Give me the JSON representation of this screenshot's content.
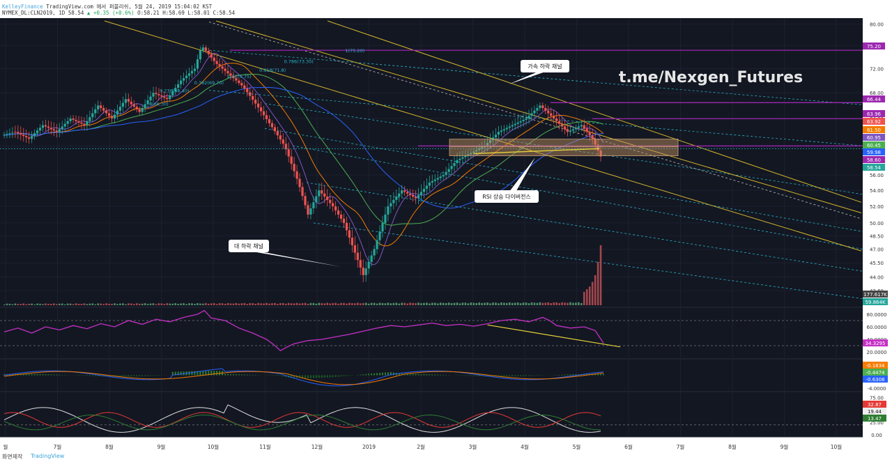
{
  "header": {
    "brand": "KelleyFinance",
    "published": "TradingView.com 에서 퍼블리쉬, 5월 24, 2019 15:04:02 KST",
    "symbol_line_prefix": "NYMEX_DL:CLN2019, 1D 58.54 ",
    "change": "▲ +0.35 (+0.6%)",
    "ohlc": "O:58.21 H:58.69 L:58.01 C:58.54"
  },
  "footer": {
    "made_with": "화면제작",
    "logo_text": "TradingView"
  },
  "watermark": "t.me/Nexgen_Futures",
  "colors": {
    "background": "#131722",
    "up": "#26a69a",
    "down": "#ef5350",
    "channel": "#d4b62c",
    "fib": "#28b5c9",
    "level": "#9c27b0",
    "rsi": "#c530c5"
  },
  "chart_data": [
    {
      "type": "candlestick",
      "panel": "price",
      "x_tick_labels": [
        "월",
        "7월",
        "8월",
        "9월",
        "10월",
        "11월",
        "12월",
        "2019",
        "2월",
        "3월",
        "4월",
        "5월",
        "6월",
        "7월",
        "8월",
        "9월",
        "10월"
      ],
      "y_tick_labels": [
        "80.00",
        "76.00",
        "72.00",
        "68.00",
        "64.00",
        "60.00",
        "56.00",
        "54.00",
        "52.00",
        "50.00",
        "48.50",
        "47.00",
        "45.50",
        "44.00",
        "42.60"
      ],
      "ylim": [
        41.3,
        80.6
      ],
      "scale": "log",
      "close_path": [
        [
          0,
          61.5
        ],
        [
          10,
          62
        ],
        [
          20,
          61
        ],
        [
          30,
          63
        ],
        [
          40,
          62
        ],
        [
          50,
          64
        ],
        [
          60,
          63
        ],
        [
          70,
          66
        ],
        [
          80,
          64
        ],
        [
          90,
          67
        ],
        [
          100,
          65
        ],
        [
          110,
          68
        ],
        [
          120,
          67
        ],
        [
          130,
          70
        ],
        [
          140,
          72
        ],
        [
          145,
          76
        ],
        [
          155,
          73
        ],
        [
          165,
          71
        ],
        [
          175,
          69
        ],
        [
          185,
          66
        ],
        [
          195,
          63
        ],
        [
          205,
          60
        ],
        [
          215,
          55
        ],
        [
          222,
          51
        ],
        [
          230,
          54
        ],
        [
          240,
          52
        ],
        [
          248,
          50
        ],
        [
          255,
          47
        ],
        [
          262,
          44.2
        ],
        [
          270,
          47
        ],
        [
          280,
          52
        ],
        [
          290,
          54
        ],
        [
          300,
          53
        ],
        [
          310,
          55
        ],
        [
          320,
          56
        ],
        [
          330,
          58
        ],
        [
          340,
          59
        ],
        [
          350,
          60
        ],
        [
          360,
          62
        ],
        [
          370,
          63
        ],
        [
          380,
          64
        ],
        [
          390,
          66
        ],
        [
          400,
          64
        ],
        [
          410,
          62
        ],
        [
          420,
          63
        ],
        [
          428,
          61
        ],
        [
          434,
          58.5
        ]
      ],
      "volume_indices": [
        [
          420,
          4
        ],
        [
          425,
          6
        ],
        [
          428,
          9
        ],
        [
          430,
          13
        ],
        [
          432,
          18
        ],
        [
          434,
          23
        ]
      ],
      "fib_labels": [
        "0(66.30)",
        "0.236(68.40)",
        "0.382(69.70)",
        "0.5(70.75)",
        "0.618(71.8)",
        "0.786(73.30)",
        "1(75.20)"
      ],
      "level_tags": [
        "75.20",
        "66.44",
        "63.96",
        "63.92",
        "61.50",
        "60.95",
        "60.45",
        "59.98",
        "58.60",
        "58.54"
      ],
      "volume_tags": [
        "177.617K",
        "59.864K"
      ],
      "annotations": [
        "가속 하락 채널",
        "RSI 상승 다이버전스",
        "대 하락 채널"
      ]
    },
    {
      "type": "line",
      "panel": "rsi",
      "name": "RSI",
      "ylim": [
        10,
        90
      ],
      "y_tick_labels": [
        "80.0000",
        "60.0000",
        "40.0000",
        "20.0000"
      ],
      "last_value": "34.3295",
      "values": [
        [
          0,
          52
        ],
        [
          10,
          58
        ],
        [
          20,
          50
        ],
        [
          30,
          60
        ],
        [
          40,
          55
        ],
        [
          50,
          62
        ],
        [
          60,
          57
        ],
        [
          70,
          65
        ],
        [
          80,
          60
        ],
        [
          90,
          70
        ],
        [
          100,
          64
        ],
        [
          110,
          72
        ],
        [
          120,
          68
        ],
        [
          130,
          75
        ],
        [
          140,
          80
        ],
        [
          145,
          86
        ],
        [
          150,
          74
        ],
        [
          160,
          70
        ],
        [
          170,
          58
        ],
        [
          180,
          50
        ],
        [
          190,
          40
        ],
        [
          195,
          32
        ],
        [
          200,
          22
        ],
        [
          205,
          28
        ],
        [
          210,
          33
        ],
        [
          220,
          38
        ],
        [
          230,
          40
        ],
        [
          240,
          44
        ],
        [
          250,
          48
        ],
        [
          262,
          54
        ],
        [
          270,
          58
        ],
        [
          280,
          62
        ],
        [
          290,
          60
        ],
        [
          300,
          63
        ],
        [
          310,
          66
        ],
        [
          320,
          62
        ],
        [
          330,
          64
        ],
        [
          340,
          61
        ],
        [
          350,
          65
        ],
        [
          360,
          70
        ],
        [
          370,
          72
        ],
        [
          380,
          68
        ],
        [
          390,
          75
        ],
        [
          395,
          70
        ],
        [
          400,
          62
        ],
        [
          410,
          58
        ],
        [
          420,
          60
        ],
        [
          428,
          54
        ],
        [
          434,
          34
        ]
      ]
    },
    {
      "type": "line",
      "panel": "macd",
      "name": "MACD",
      "y_tick_labels": [
        "-4.0000"
      ],
      "last_values": [
        "-0.1834",
        "-0.4474",
        "-0.6308"
      ]
    },
    {
      "type": "line",
      "panel": "dmi",
      "name": "DMI",
      "y_tick_labels": [
        "75.00",
        "50.00",
        "25.00",
        "0.00"
      ],
      "last_values": [
        "32.87",
        "19.44",
        "13.47"
      ]
    }
  ]
}
